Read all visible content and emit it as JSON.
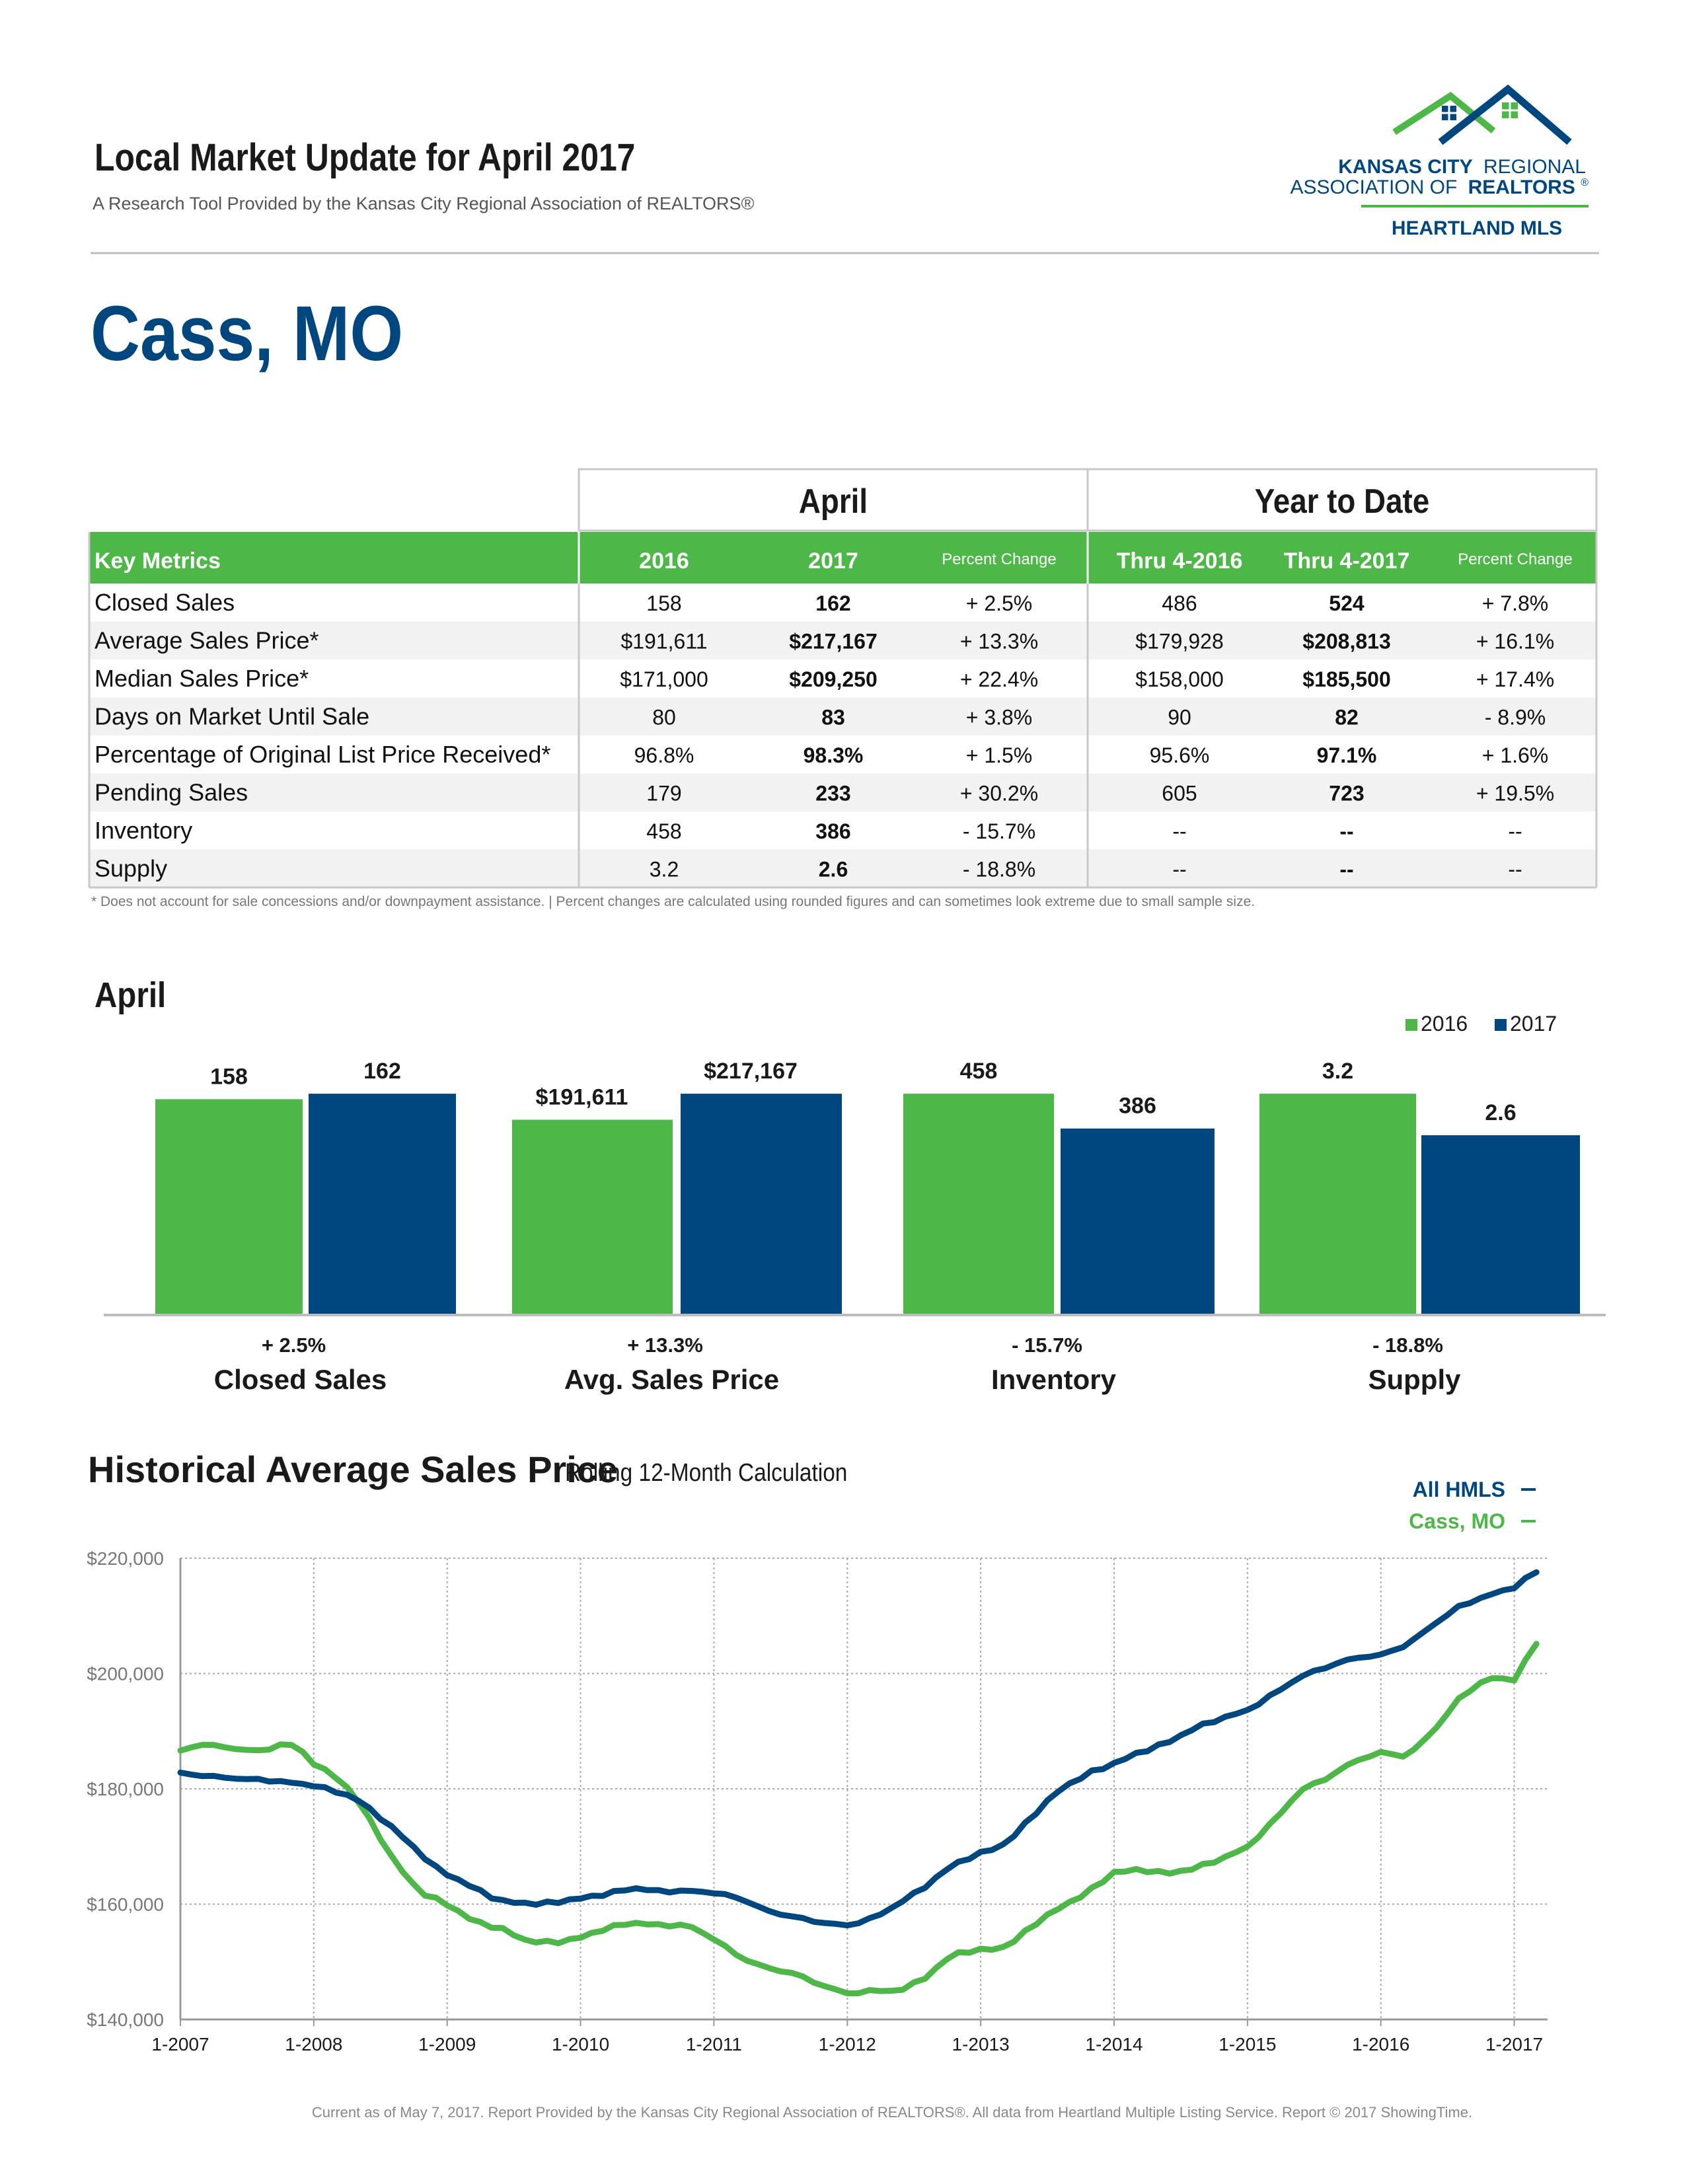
{
  "header": {
    "title": "Local Market Update for April 2017",
    "subtitle": "A Research Tool Provided by the Kansas City Regional Association of REALTORS®",
    "logo": {
      "line1a": "KANSAS CITY",
      "line1b": "REGIONAL",
      "line2a": "ASSOCIATION OF",
      "line2b": "REALTORS",
      "line2c": "®",
      "line3": "HEARTLAND MLS"
    },
    "location": "Cass, MO"
  },
  "table": {
    "group_april": "April",
    "group_ytd": "Year to Date",
    "columns": [
      "Key Metrics",
      "2016",
      "2017",
      "Percent Change",
      "Thru 4-2016",
      "Thru 4-2017",
      "Percent Change"
    ],
    "rows": [
      [
        "Closed Sales",
        "158",
        "162",
        "+ 2.5%",
        "486",
        "524",
        "+ 7.8%"
      ],
      [
        "Average Sales Price*",
        "$191,611",
        "$217,167",
        "+ 13.3%",
        "$179,928",
        "$208,813",
        "+ 16.1%"
      ],
      [
        "Median Sales Price*",
        "$171,000",
        "$209,250",
        "+ 22.4%",
        "$158,000",
        "$185,500",
        "+ 17.4%"
      ],
      [
        "Days on Market Until Sale",
        "80",
        "83",
        "+ 3.8%",
        "90",
        "82",
        "- 8.9%"
      ],
      [
        "Percentage of Original List Price Received*",
        "96.8%",
        "98.3%",
        "+ 1.5%",
        "95.6%",
        "97.1%",
        "+ 1.6%"
      ],
      [
        "Pending Sales",
        "179",
        "233",
        "+ 30.2%",
        "605",
        "723",
        "+ 19.5%"
      ],
      [
        "Inventory",
        "458",
        "386",
        "- 15.7%",
        "--",
        "--",
        "--"
      ],
      [
        "Supply",
        "3.2",
        "2.6",
        "- 18.8%",
        "--",
        "--",
        "--"
      ]
    ],
    "footnote": "* Does not account for sale concessions and/or downpayment assistance.  |  Percent changes are calculated using rounded figures and can sometimes look extreme due to small sample size."
  },
  "colors": {
    "navy": "#00467f",
    "green": "#4db848",
    "row_alt": "#f2f2f2",
    "border": "#c8c8c8"
  },
  "chart_data": [
    {
      "type": "bar",
      "title": "April",
      "legend": [
        "2016",
        "2017"
      ],
      "legend_position": "top-right",
      "groups": [
        {
          "name": "Closed Sales",
          "change": "+ 2.5%",
          "v2016": 158,
          "v2017": 162,
          "label2016": "158",
          "label2017": "162"
        },
        {
          "name": "Avg. Sales Price",
          "change": "+ 13.3%",
          "v2016": 191611,
          "v2017": 217167,
          "label2016": "$191,611",
          "label2017": "$217,167"
        },
        {
          "name": "Inventory",
          "change": "- 15.7%",
          "v2016": 458,
          "v2017": 386,
          "label2016": "458",
          "label2017": "386"
        },
        {
          "name": "Supply",
          "change": "- 18.8%",
          "v2016": 3.2,
          "v2017": 2.6,
          "label2016": "3.2",
          "label2017": "2.6"
        }
      ]
    },
    {
      "type": "line",
      "title": "Historical Average Sales Price",
      "subtitle": "Rolling 12-Month Calculation",
      "ylim": [
        140000,
        220000
      ],
      "yticks": [
        "$140,000",
        "$160,000",
        "$180,000",
        "$200,000",
        "$220,000"
      ],
      "xticks": [
        "1-2007",
        "1-2008",
        "1-2009",
        "1-2010",
        "1-2011",
        "1-2012",
        "1-2013",
        "1-2014",
        "1-2015",
        "1-2016",
        "1-2017"
      ],
      "grid": true,
      "series": [
        {
          "name": "All HMLS",
          "color": "#00467f",
          "anchors": [
            [
              0,
              182700
            ],
            [
              0.3,
              182000
            ],
            [
              0.7,
              181400
            ],
            [
              1.0,
              180600
            ],
            [
              1.3,
              178600
            ],
            [
              1.5,
              175000
            ],
            [
              1.7,
              171000
            ],
            [
              1.9,
              166500
            ],
            [
              2.1,
              164000
            ],
            [
              2.4,
              160500
            ],
            [
              2.7,
              160000
            ],
            [
              3.0,
              161000
            ],
            [
              3.2,
              161800
            ],
            [
              3.4,
              162800
            ],
            [
              3.6,
              162200
            ],
            [
              3.8,
              162300
            ],
            [
              4.0,
              162000
            ],
            [
              4.2,
              161000
            ],
            [
              4.4,
              158800
            ],
            [
              4.6,
              157800
            ],
            [
              4.8,
              156800
            ],
            [
              5.0,
              156300
            ],
            [
              5.2,
              157600
            ],
            [
              5.4,
              160300
            ],
            [
              5.6,
              163300
            ],
            [
              5.8,
              167000
            ],
            [
              6.0,
              168800
            ],
            [
              6.2,
              170600
            ],
            [
              6.4,
              175600
            ],
            [
              6.6,
              180000
            ],
            [
              6.8,
              182600
            ],
            [
              7.0,
              184400
            ],
            [
              7.2,
              186400
            ],
            [
              7.4,
              188000
            ],
            [
              7.6,
              190500
            ],
            [
              7.8,
              192200
            ],
            [
              8.0,
              193600
            ],
            [
              8.2,
              196500
            ],
            [
              8.4,
              199500
            ],
            [
              8.6,
              201200
            ],
            [
              8.8,
              202700
            ],
            [
              9.0,
              203200
            ],
            [
              9.2,
              205000
            ],
            [
              9.4,
              208600
            ],
            [
              9.6,
              211800
            ],
            [
              9.8,
              213500
            ],
            [
              10.0,
              215000
            ],
            [
              10.2,
              218200
            ]
          ]
        },
        {
          "name": "Cass, MO",
          "color": "#4db848",
          "anchors": [
            [
              0,
              186500
            ],
            [
              0.15,
              187800
            ],
            [
              0.4,
              187000
            ],
            [
              0.6,
              186500
            ],
            [
              0.8,
              188000
            ],
            [
              0.9,
              186800
            ],
            [
              1.0,
              184400
            ],
            [
              1.2,
              181500
            ],
            [
              1.3,
              179000
            ],
            [
              1.45,
              173500
            ],
            [
              1.6,
              167500
            ],
            [
              1.8,
              162000
            ],
            [
              2.0,
              160000
            ],
            [
              2.2,
              157000
            ],
            [
              2.4,
              155800
            ],
            [
              2.6,
              153600
            ],
            [
              2.8,
              153300
            ],
            [
              3.0,
              154200
            ],
            [
              3.2,
              155900
            ],
            [
              3.4,
              156800
            ],
            [
              3.6,
              156300
            ],
            [
              3.8,
              156400
            ],
            [
              4.0,
              154000
            ],
            [
              4.2,
              150700
            ],
            [
              4.4,
              148900
            ],
            [
              4.6,
              148000
            ],
            [
              4.8,
              146000
            ],
            [
              5.0,
              144500
            ],
            [
              5.2,
              145000
            ],
            [
              5.4,
              145000
            ],
            [
              5.6,
              147500
            ],
            [
              5.8,
              151500
            ],
            [
              6.0,
              152000
            ],
            [
              6.2,
              152600
            ],
            [
              6.4,
              156500
            ],
            [
              6.6,
              159500
            ],
            [
              6.8,
              162000
            ],
            [
              7.0,
              165500
            ],
            [
              7.2,
              166000
            ],
            [
              7.4,
              165300
            ],
            [
              7.6,
              166200
            ],
            [
              7.8,
              167800
            ],
            [
              8.0,
              169900
            ],
            [
              8.2,
              174500
            ],
            [
              8.4,
              179800
            ],
            [
              8.6,
              181900
            ],
            [
              8.8,
              184800
            ],
            [
              9.0,
              186300
            ],
            [
              9.2,
              185600
            ],
            [
              9.4,
              190200
            ],
            [
              9.6,
              196000
            ],
            [
              9.8,
              199200
            ],
            [
              10.0,
              199000
            ],
            [
              10.2,
              206500
            ]
          ]
        }
      ]
    }
  ],
  "footer": "Current as of May 7, 2017. Report Provided by the Kansas City Regional Association of REALTORS®. All data from Heartland Multiple Listing Service. Report © 2017 ShowingTime."
}
